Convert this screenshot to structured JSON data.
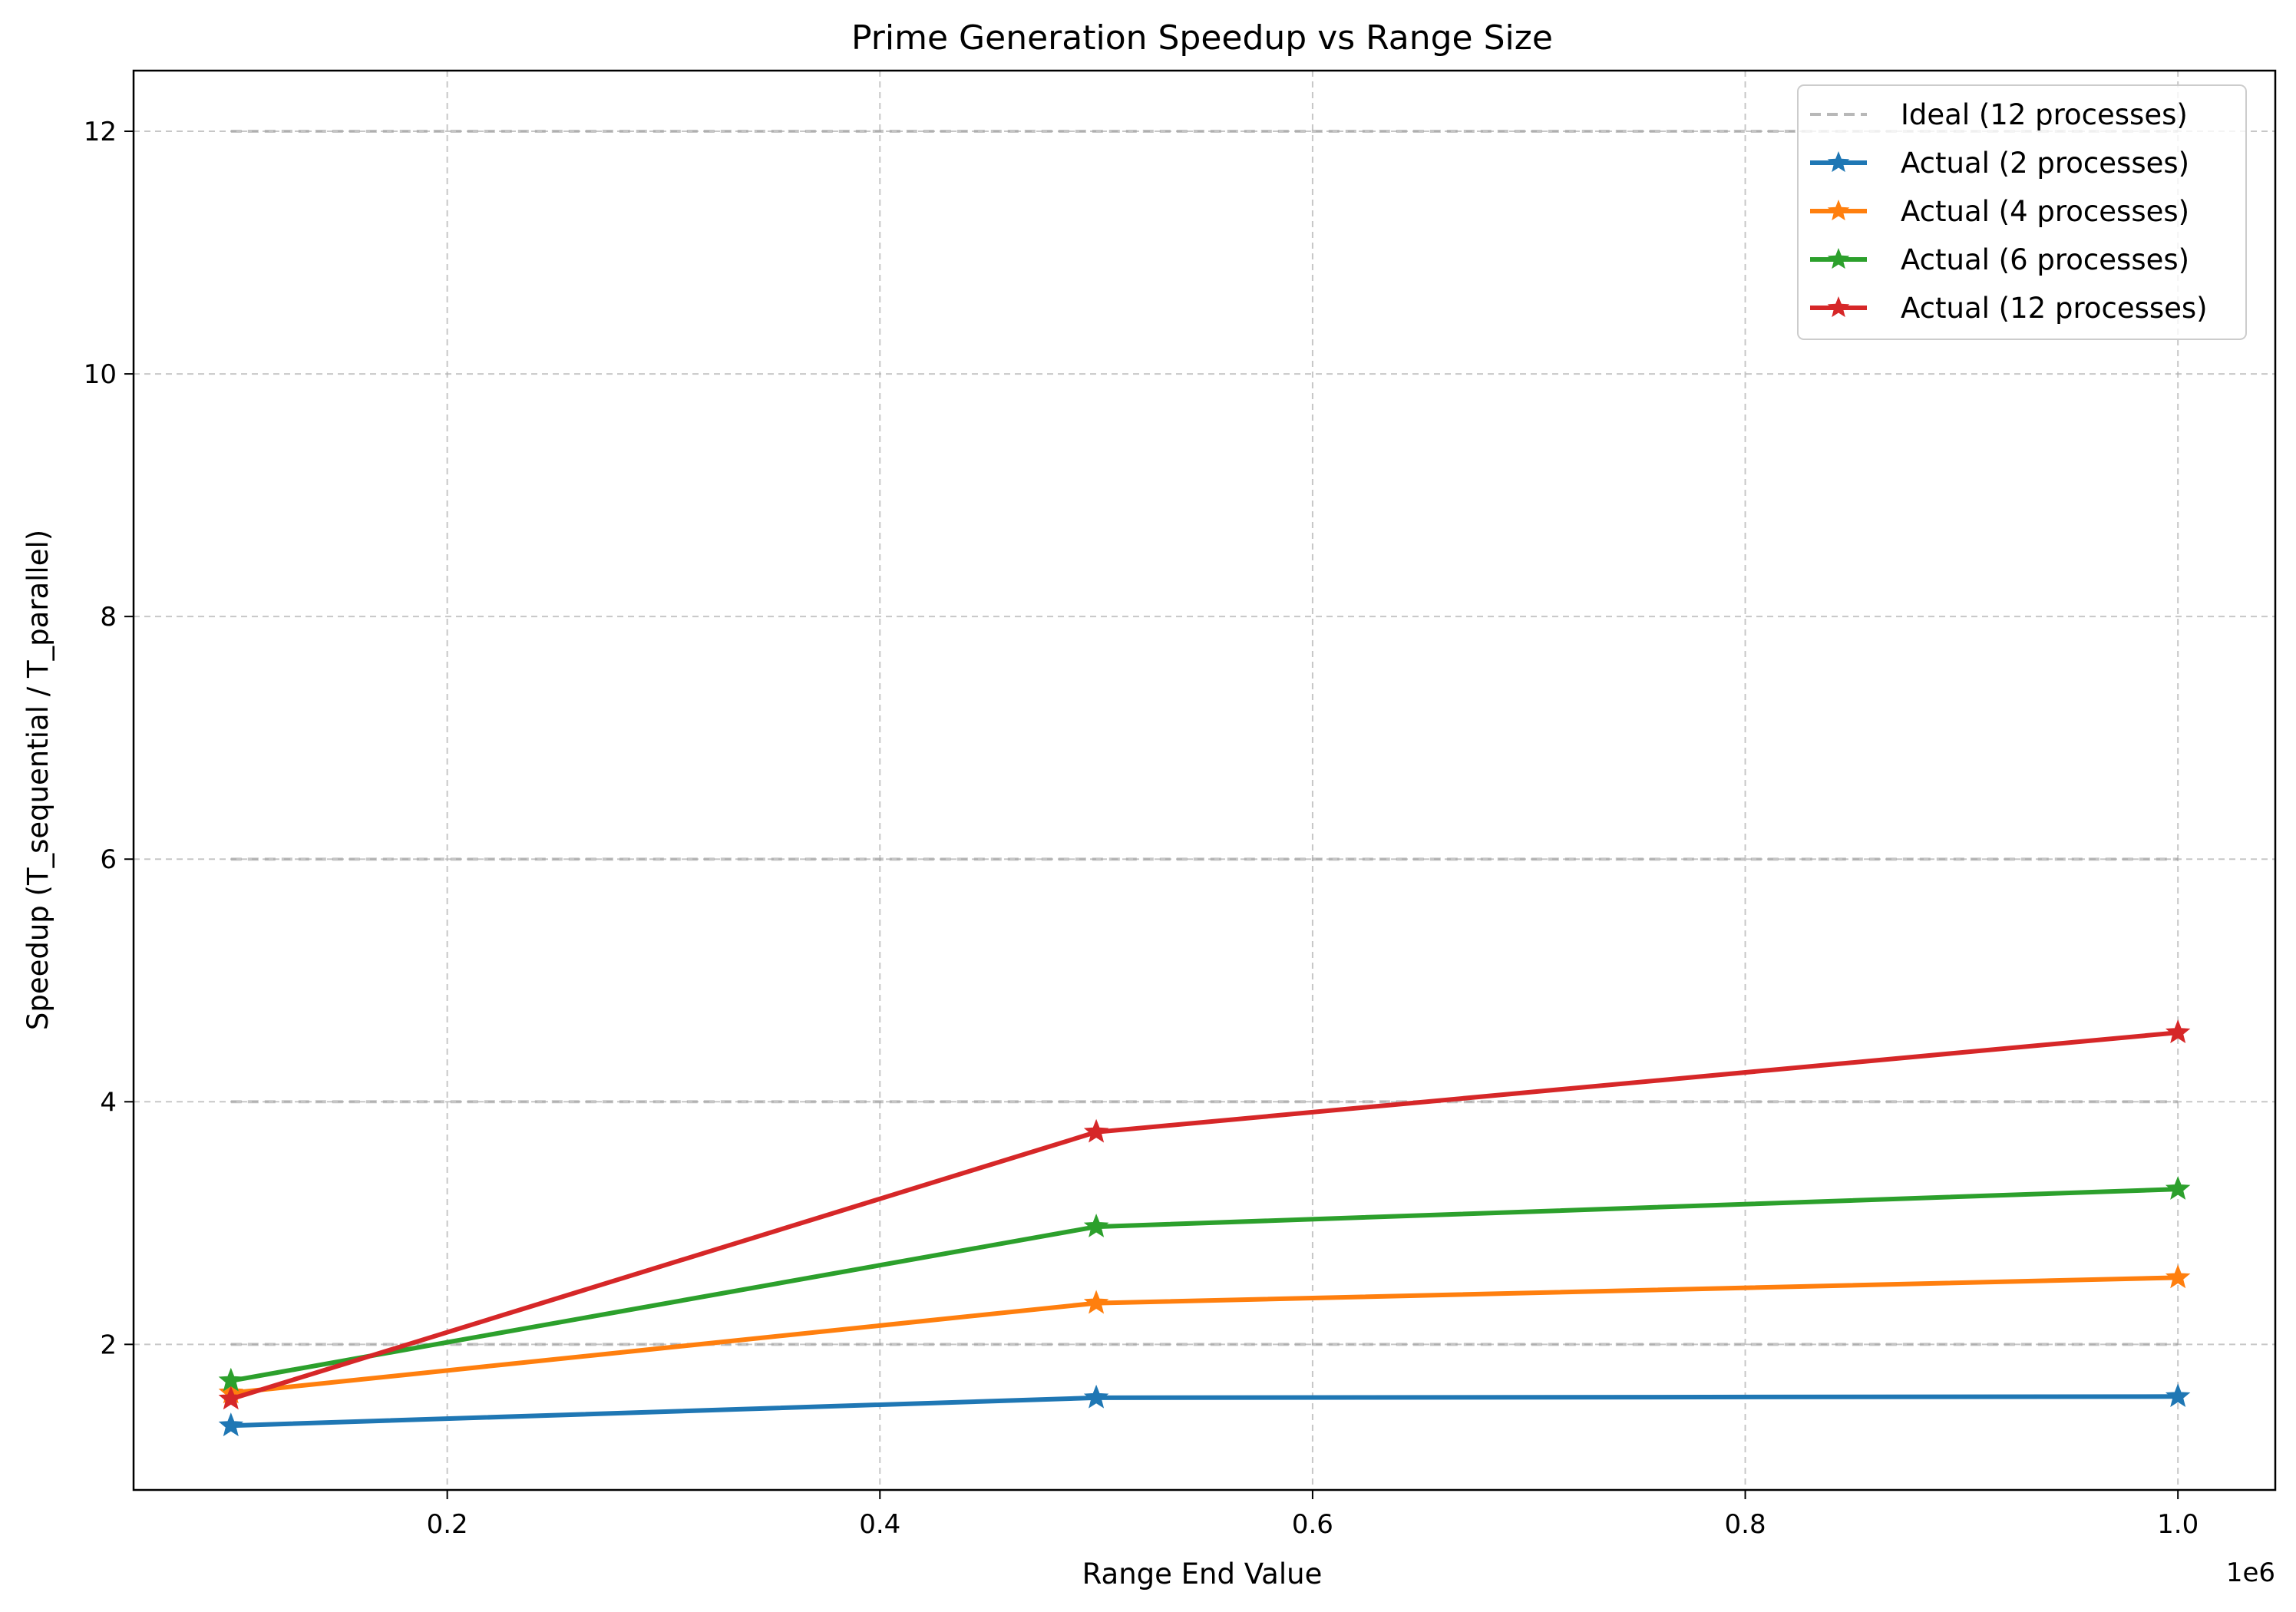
{
  "chart_data": {
    "type": "line",
    "title": "Prime Generation Speedup vs Range Size",
    "xlabel": "Range End Value",
    "ylabel": "Speedup (T_sequential / T_parallel)",
    "x_offset_label": "1e6",
    "xlim": [
      55000,
      1045000
    ],
    "ylim": [
      0.8,
      12.5
    ],
    "x_ticks": [
      200000,
      400000,
      600000,
      800000,
      1000000
    ],
    "x_tick_labels": [
      "0.2",
      "0.4",
      "0.6",
      "0.8",
      "1.0"
    ],
    "y_ticks": [
      2,
      4,
      6,
      8,
      10,
      12
    ],
    "y_tick_labels": [
      "2",
      "4",
      "6",
      "8",
      "10",
      "12"
    ],
    "grid": true,
    "legend_position": "top-right",
    "x": [
      100000,
      500000,
      1000000
    ],
    "ideal_lines": [
      {
        "y": 2,
        "color": "#a0a0a0"
      },
      {
        "y": 4,
        "color": "#a0a0a0"
      },
      {
        "y": 6,
        "color": "#a0a0a0"
      },
      {
        "y": 12,
        "color": "#a0a0a0"
      }
    ],
    "ideal_legend": {
      "name": "Ideal (12 processes)",
      "color": "#b8b8b8"
    },
    "series": [
      {
        "name": "Actual (2 processes)",
        "color": "#1f77b4",
        "values": [
          1.33,
          1.56,
          1.57
        ]
      },
      {
        "name": "Actual (4 processes)",
        "color": "#ff7f0e",
        "values": [
          1.6,
          2.34,
          2.55
        ]
      },
      {
        "name": "Actual (6 processes)",
        "color": "#2ca02c",
        "values": [
          1.7,
          2.97,
          3.28
        ]
      },
      {
        "name": "Actual (12 processes)",
        "color": "#d62728",
        "values": [
          1.55,
          3.75,
          4.57
        ]
      }
    ]
  }
}
